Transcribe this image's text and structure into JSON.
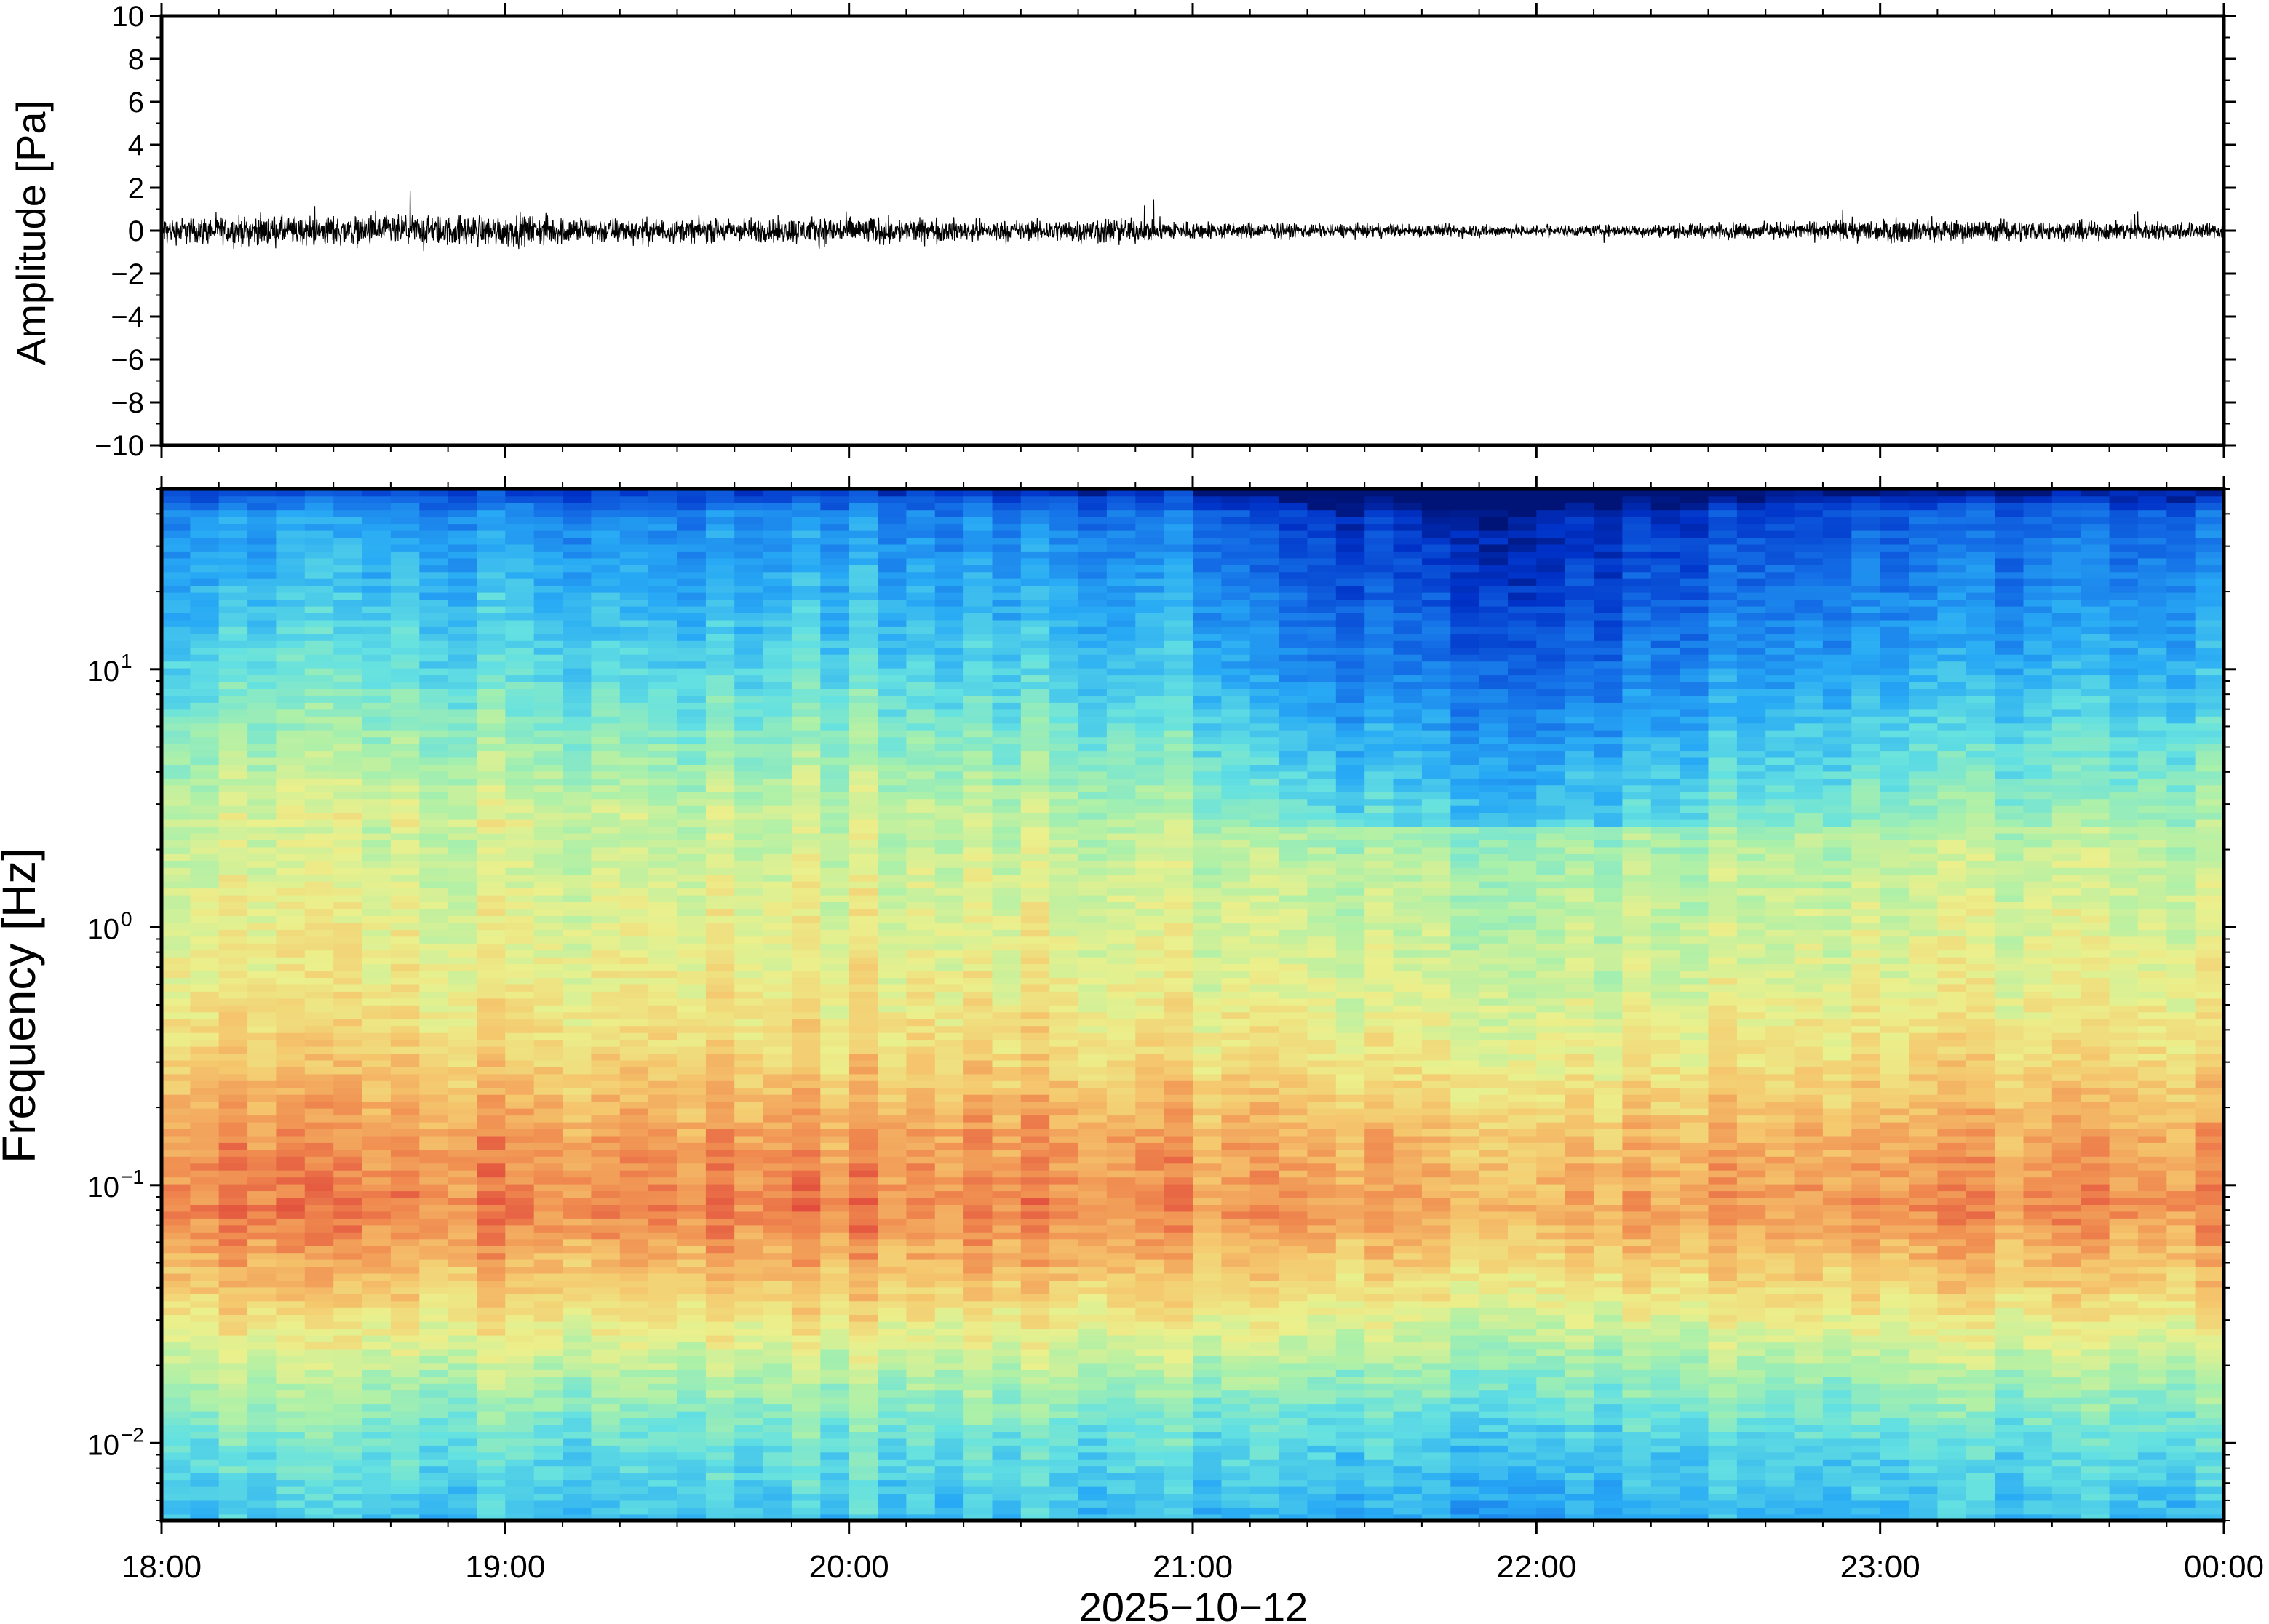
{
  "chart_data": [
    {
      "type": "line",
      "ylabel": "Amplitude [Pa]",
      "ylim": [
        -10,
        10
      ],
      "yticks": [
        10,
        8,
        6,
        4,
        2,
        0,
        -2,
        -4,
        -6,
        -8,
        -10
      ],
      "ytick_labels": [
        "10",
        "8",
        "6",
        "4",
        "2",
        "0",
        "−2",
        "−4",
        "−6",
        "−8",
        "−10"
      ],
      "x_range_hours": [
        18,
        24
      ],
      "envelope": {
        "hours": [
          18.0,
          18.25,
          18.5,
          18.75,
          19.0,
          19.25,
          19.5,
          19.75,
          20.0,
          20.25,
          20.5,
          20.75,
          21.0,
          21.25,
          21.5,
          21.75,
          22.0,
          22.25,
          22.5,
          22.75,
          23.0,
          23.25,
          23.5,
          23.75,
          24.0
        ],
        "amplitude": [
          0.8,
          0.85,
          0.9,
          0.9,
          0.95,
          0.8,
          0.7,
          0.75,
          0.85,
          0.7,
          0.6,
          0.8,
          0.55,
          0.45,
          0.4,
          0.4,
          0.35,
          0.35,
          0.45,
          0.5,
          0.7,
          0.65,
          0.6,
          0.55,
          0.5
        ]
      },
      "grid": false,
      "legend": "none"
    },
    {
      "type": "heatmap",
      "ylabel": "Frequency [Hz]",
      "xlabel": "2025−10−12",
      "xticks_hours": [
        18,
        19,
        20,
        21,
        22,
        23,
        24
      ],
      "xtick_labels": [
        "18:00",
        "19:00",
        "20:00",
        "21:00",
        "22:00",
        "23:00",
        "00:00"
      ],
      "yscale": "log",
      "ylim": [
        0.005,
        50
      ],
      "yticks": [
        {
          "base": "10",
          "exp": "1",
          "value": 10
        },
        {
          "base": "10",
          "exp": "0",
          "value": 1
        },
        {
          "base": "10",
          "exp": "−1",
          "value": 0.1
        },
        {
          "base": "10",
          "exp": "−2",
          "value": 0.01
        }
      ],
      "colormap": "jet-like (blue low, red high)",
      "intensity_profile": {
        "log10_freq": [
          -2.3,
          -2.0,
          -1.7,
          -1.4,
          -1.1,
          -0.8,
          -0.5,
          -0.2,
          0.1,
          0.4,
          0.7,
          1.0,
          1.3,
          1.6,
          1.7
        ],
        "level": [
          0.36,
          0.44,
          0.58,
          0.74,
          0.86,
          0.82,
          0.72,
          0.66,
          0.63,
          0.58,
          0.48,
          0.38,
          0.3,
          0.22,
          0.05
        ]
      },
      "time_profile": {
        "hours": [
          18.0,
          18.5,
          19.0,
          19.5,
          20.0,
          20.5,
          21.0,
          21.25,
          21.5,
          22.0,
          22.5,
          23.0,
          23.5,
          24.0
        ],
        "level_shift": [
          0.02,
          0.05,
          0.04,
          0.02,
          0.03,
          0.01,
          0.0,
          -0.08,
          -0.09,
          -0.12,
          -0.07,
          -0.04,
          -0.03,
          -0.02
        ]
      },
      "grid": false,
      "legend": "none"
    }
  ],
  "colors": {
    "frame": "#000000",
    "trace": "#000000",
    "background": "#ffffff"
  }
}
